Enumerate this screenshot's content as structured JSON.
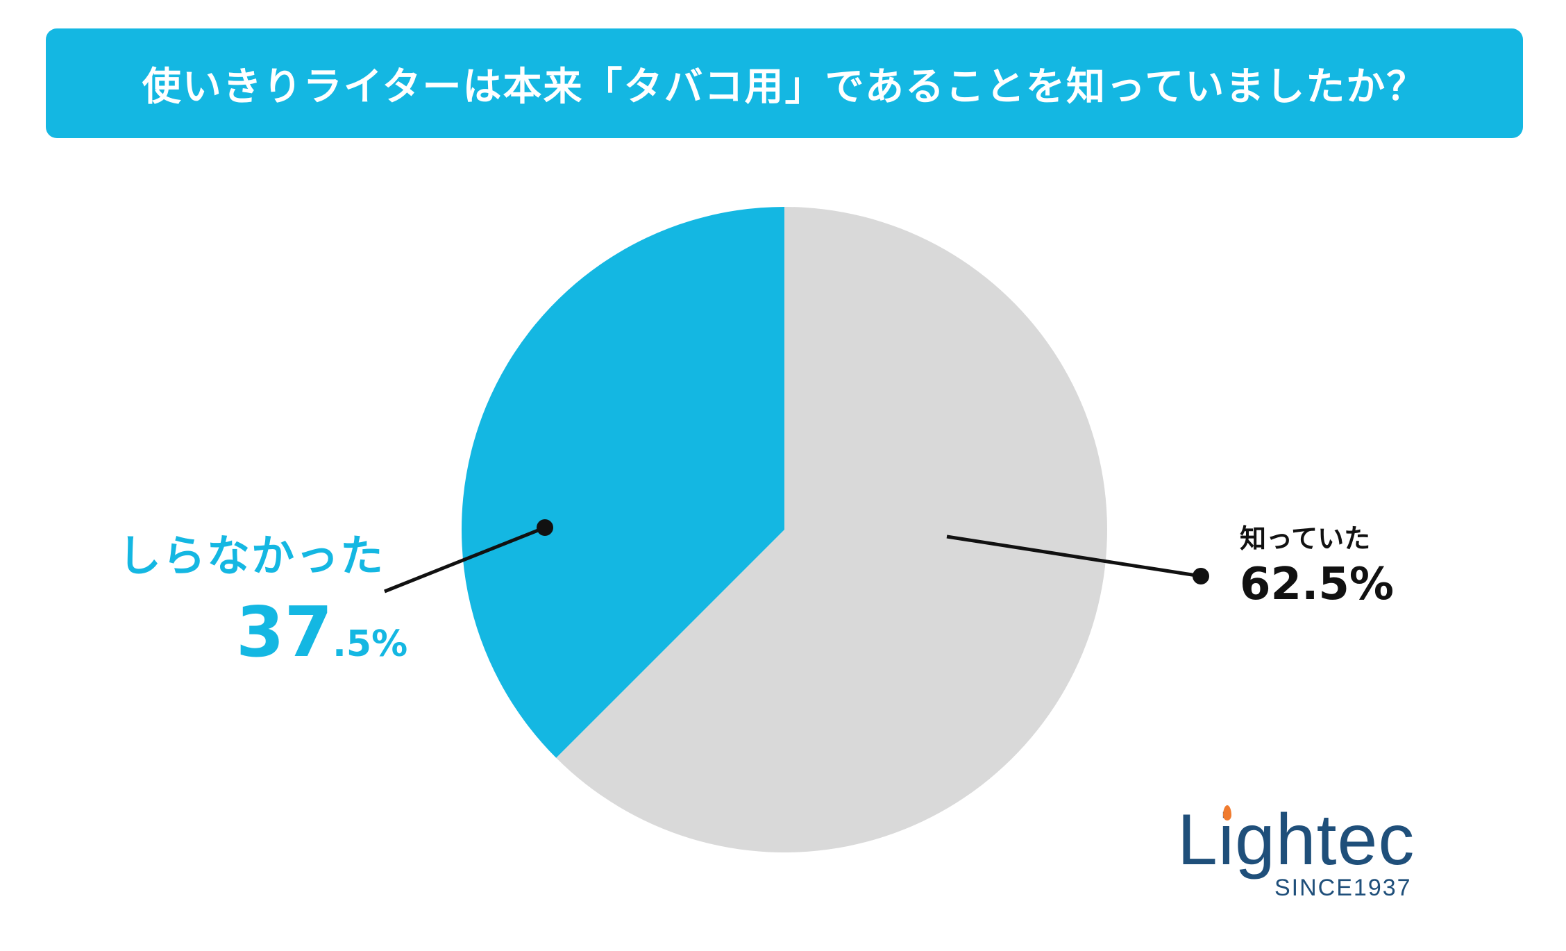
{
  "title": "使いきりライターは本来「タバコ用」であることを知っていましたか？",
  "chart_data": {
    "type": "pie",
    "title": "使いきりライターは本来「タバコ用」であることを知っていましたか？",
    "slices": [
      {
        "label": "知っていた",
        "value": 62.5,
        "display": "62.5%",
        "color": "#d9d9d9"
      },
      {
        "label": "しらなかった",
        "value": 37.5,
        "display_main": "37",
        "display_suffix": ".5%",
        "color": "#14b7e2"
      }
    ]
  },
  "colors": {
    "accent": "#14b7e2",
    "background_slice": "#d9d9d9",
    "logo": "#1f4f7a",
    "logo_flame": "#f07b2e"
  },
  "logo": {
    "word": "Lightec",
    "since": "SINCE1937"
  }
}
